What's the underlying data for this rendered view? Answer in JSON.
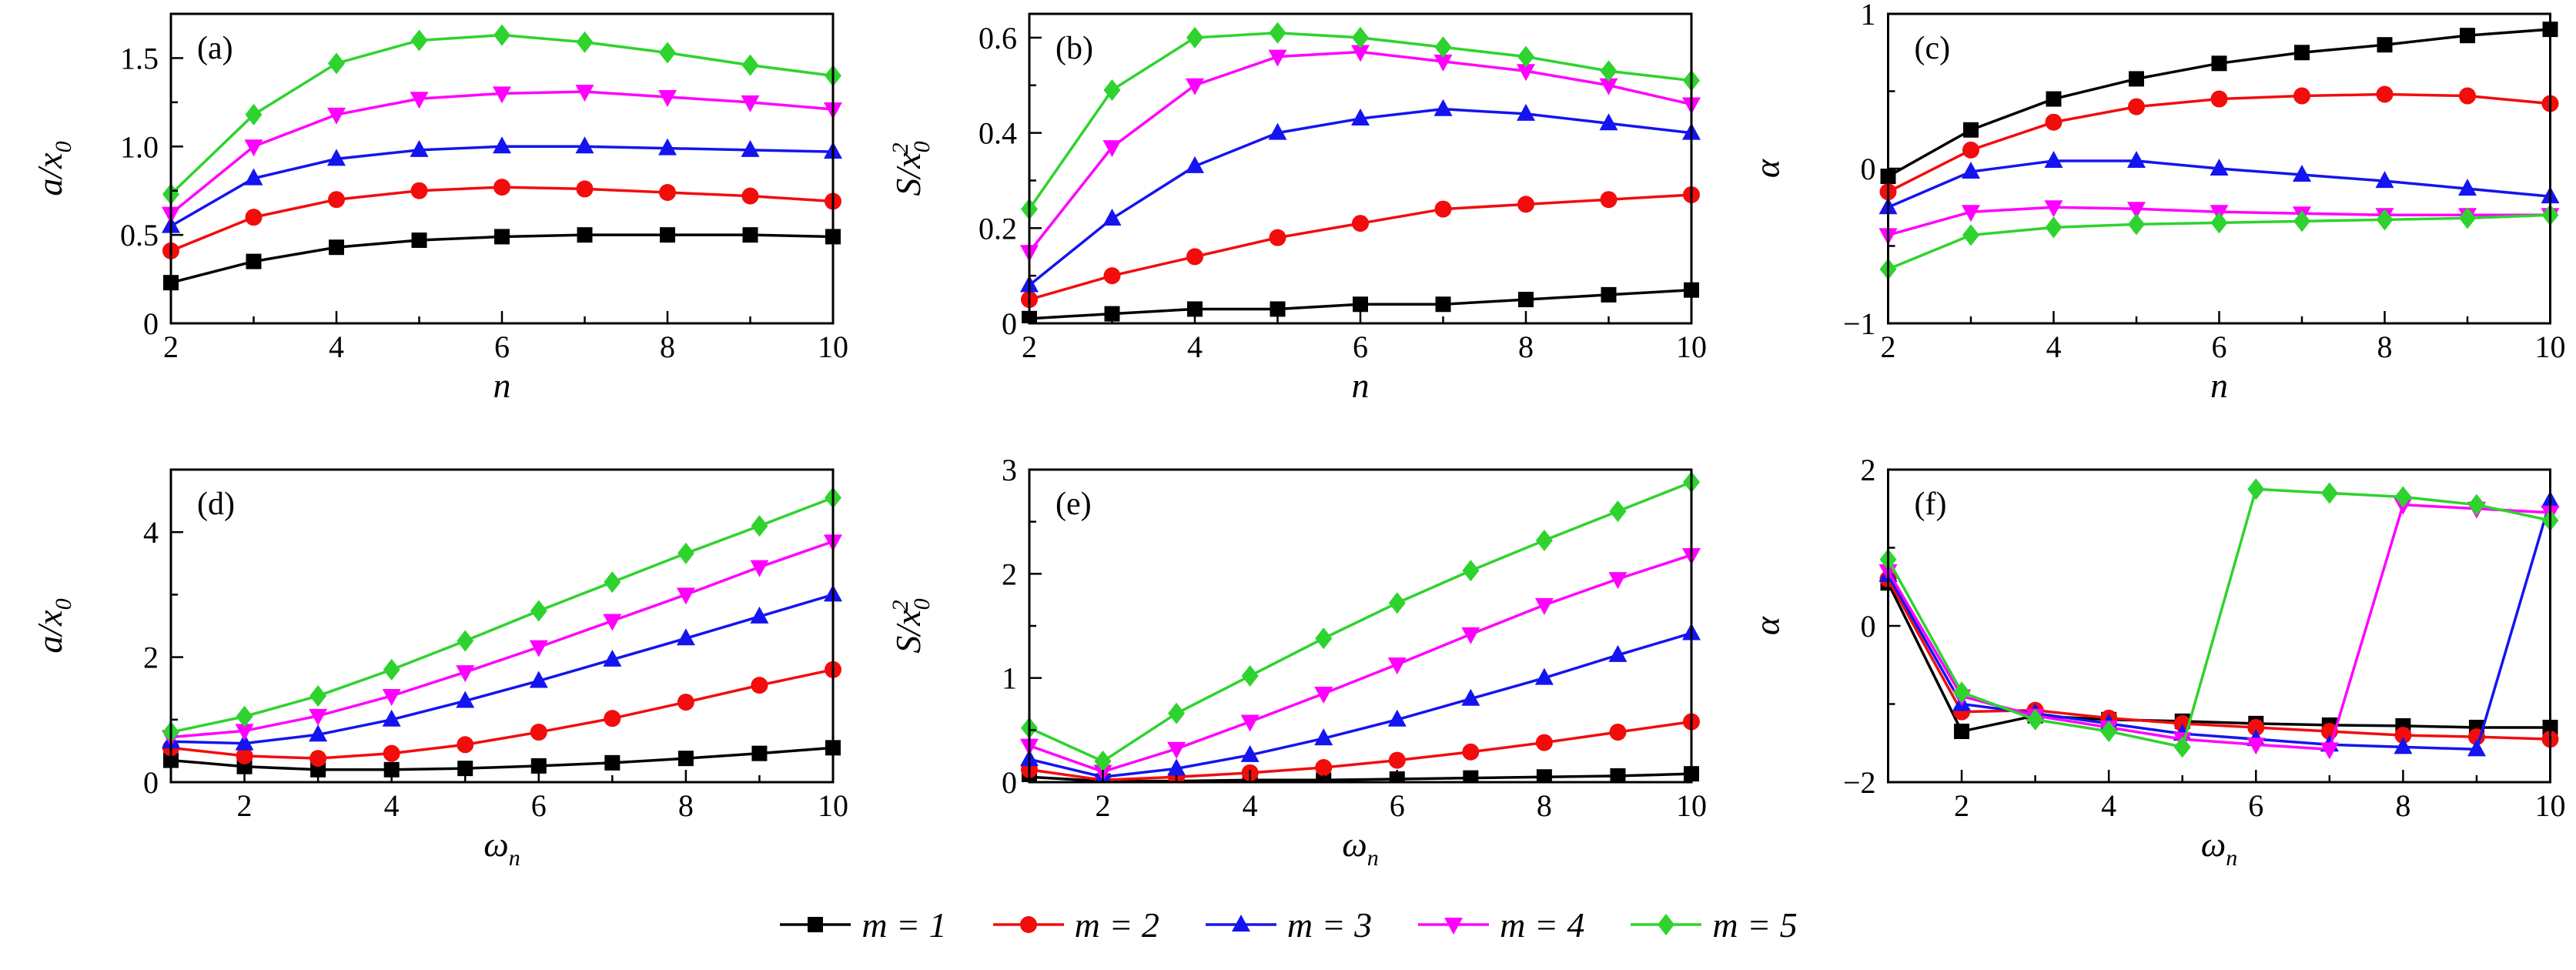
{
  "figure": {
    "background": "#ffffff",
    "axis_color": "#000000",
    "legend": {
      "entries": [
        {
          "label": "m = 1",
          "color": "#000000",
          "marker": "square"
        },
        {
          "label": "m = 2",
          "color": "#f20c0c",
          "marker": "circle"
        },
        {
          "label": "m = 3",
          "color": "#1414f0",
          "marker": "triangle-up"
        },
        {
          "label": "m = 4",
          "color": "#ff00ff",
          "marker": "triangle-down"
        },
        {
          "label": "m = 5",
          "color": "#2ed32e",
          "marker": "diamond"
        }
      ]
    }
  },
  "chart_data": [
    {
      "id": "a",
      "type": "line",
      "tag": "(a)",
      "xlabel": "n",
      "ylabel": "a/x_0",
      "xlim": [
        2,
        10
      ],
      "ylim": [
        0,
        1.75
      ],
      "xticks": [
        2,
        4,
        6,
        8,
        10
      ],
      "xminor": [
        3,
        5,
        7,
        9
      ],
      "yticks": [
        0,
        0.5,
        1.0,
        1.5
      ],
      "ytick_labels": [
        "0",
        "0.5",
        "1.0",
        "1.5"
      ],
      "yminor": [
        0.25,
        0.75,
        1.25
      ],
      "x": [
        2,
        3,
        4,
        5,
        6,
        7,
        8,
        9,
        10
      ],
      "series": [
        {
          "name": "m = 1",
          "values": [
            0.23,
            0.35,
            0.43,
            0.47,
            0.49,
            0.5,
            0.5,
            0.5,
            0.49
          ]
        },
        {
          "name": "m = 2",
          "values": [
            0.41,
            0.6,
            0.7,
            0.75,
            0.77,
            0.76,
            0.74,
            0.72,
            0.69
          ]
        },
        {
          "name": "m = 3",
          "values": [
            0.55,
            0.82,
            0.93,
            0.98,
            1.0,
            1.0,
            0.99,
            0.98,
            0.97
          ]
        },
        {
          "name": "m = 4",
          "values": [
            0.62,
            1.0,
            1.18,
            1.27,
            1.3,
            1.31,
            1.28,
            1.25,
            1.21
          ]
        },
        {
          "name": "m = 5",
          "values": [
            0.73,
            1.18,
            1.47,
            1.6,
            1.63,
            1.59,
            1.53,
            1.46,
            1.4
          ]
        }
      ]
    },
    {
      "id": "b",
      "type": "line",
      "tag": "(b)",
      "xlabel": "n",
      "ylabel": "S/x_0^2",
      "xlim": [
        2,
        10
      ],
      "ylim": [
        0,
        0.65
      ],
      "xticks": [
        2,
        4,
        6,
        8,
        10
      ],
      "xminor": [
        3,
        5,
        7,
        9
      ],
      "yticks": [
        0,
        0.2,
        0.4,
        0.6
      ],
      "ytick_labels": [
        "0",
        "0.2",
        "0.4",
        "0.6"
      ],
      "yminor": [
        0.1,
        0.3,
        0.5
      ],
      "x": [
        2,
        3,
        4,
        5,
        6,
        7,
        8,
        9,
        10
      ],
      "series": [
        {
          "name": "m = 1",
          "values": [
            0.01,
            0.02,
            0.03,
            0.03,
            0.04,
            0.04,
            0.05,
            0.06,
            0.07
          ]
        },
        {
          "name": "m = 2",
          "values": [
            0.05,
            0.1,
            0.14,
            0.18,
            0.21,
            0.24,
            0.25,
            0.26,
            0.27
          ]
        },
        {
          "name": "m = 3",
          "values": [
            0.08,
            0.22,
            0.33,
            0.4,
            0.43,
            0.45,
            0.44,
            0.42,
            0.4
          ]
        },
        {
          "name": "m = 4",
          "values": [
            0.15,
            0.37,
            0.5,
            0.56,
            0.57,
            0.55,
            0.53,
            0.5,
            0.46
          ]
        },
        {
          "name": "m = 5",
          "values": [
            0.24,
            0.49,
            0.6,
            0.61,
            0.6,
            0.58,
            0.56,
            0.53,
            0.51
          ]
        }
      ]
    },
    {
      "id": "c",
      "type": "line",
      "tag": "(c)",
      "xlabel": "n",
      "ylabel": "α",
      "xlim": [
        2,
        10
      ],
      "ylim": [
        -1,
        1
      ],
      "xticks": [
        2,
        4,
        6,
        8,
        10
      ],
      "xminor": [
        3,
        5,
        7,
        9
      ],
      "yticks": [
        -1,
        0,
        1
      ],
      "ytick_labels": [
        "−1",
        "0",
        "1"
      ],
      "yminor": [
        -0.5,
        0.5
      ],
      "x": [
        2,
        3,
        4,
        5,
        6,
        7,
        8,
        9,
        10
      ],
      "series": [
        {
          "name": "m = 1",
          "values": [
            -0.05,
            0.25,
            0.45,
            0.58,
            0.68,
            0.75,
            0.8,
            0.86,
            0.9
          ]
        },
        {
          "name": "m = 2",
          "values": [
            -0.15,
            0.12,
            0.3,
            0.4,
            0.45,
            0.47,
            0.48,
            0.47,
            0.42
          ]
        },
        {
          "name": "m = 3",
          "values": [
            -0.25,
            -0.02,
            0.05,
            0.05,
            0.0,
            -0.04,
            -0.08,
            -0.13,
            -0.18
          ]
        },
        {
          "name": "m = 4",
          "values": [
            -0.43,
            -0.28,
            -0.25,
            -0.26,
            -0.28,
            -0.29,
            -0.3,
            -0.3,
            -0.3
          ]
        },
        {
          "name": "m = 5",
          "values": [
            -0.65,
            -0.43,
            -0.38,
            -0.36,
            -0.35,
            -0.34,
            -0.33,
            -0.32,
            -0.3
          ]
        }
      ]
    },
    {
      "id": "d",
      "type": "line",
      "tag": "(d)",
      "xlabel": "ω_n",
      "ylabel": "a/x_0",
      "xlim": [
        1,
        10
      ],
      "ylim": [
        0,
        5
      ],
      "xticks": [
        2,
        4,
        6,
        8,
        10
      ],
      "xminor": [
        3,
        5,
        7,
        9
      ],
      "yticks": [
        0,
        2,
        4
      ],
      "ytick_labels": [
        "0",
        "2",
        "4"
      ],
      "yminor": [
        1,
        3
      ],
      "x": [
        1,
        2,
        3,
        4,
        5,
        6,
        7,
        8,
        9,
        10
      ],
      "series": [
        {
          "name": "m = 1",
          "values": [
            0.35,
            0.25,
            0.2,
            0.2,
            0.22,
            0.26,
            0.31,
            0.38,
            0.46,
            0.55
          ]
        },
        {
          "name": "m = 2",
          "values": [
            0.55,
            0.42,
            0.38,
            0.46,
            0.6,
            0.8,
            1.02,
            1.28,
            1.55,
            1.8
          ]
        },
        {
          "name": "m = 3",
          "values": [
            0.65,
            0.62,
            0.76,
            1.0,
            1.3,
            1.62,
            1.96,
            2.3,
            2.65,
            3.0
          ]
        },
        {
          "name": "m = 4",
          "values": [
            0.72,
            0.82,
            1.06,
            1.38,
            1.76,
            2.16,
            2.58,
            3.0,
            3.44,
            3.85
          ]
        },
        {
          "name": "m = 5",
          "values": [
            0.8,
            1.05,
            1.38,
            1.8,
            2.26,
            2.74,
            3.2,
            3.66,
            4.1,
            4.55
          ]
        }
      ]
    },
    {
      "id": "e",
      "type": "line",
      "tag": "(e)",
      "xlabel": "ω_n",
      "ylabel": "S/x_0^2",
      "xlim": [
        1,
        10
      ],
      "ylim": [
        0,
        3
      ],
      "xticks": [
        2,
        4,
        6,
        8,
        10
      ],
      "xminor": [
        3,
        5,
        7,
        9
      ],
      "yticks": [
        0,
        1,
        2,
        3
      ],
      "ytick_labels": [
        "0",
        "1",
        "2",
        "3"
      ],
      "yminor": [
        0.5,
        1.5,
        2.5
      ],
      "x": [
        1,
        2,
        3,
        4,
        5,
        6,
        7,
        8,
        9,
        10
      ],
      "series": [
        {
          "name": "m = 1",
          "values": [
            0.05,
            0.01,
            0.01,
            0.02,
            0.02,
            0.03,
            0.04,
            0.05,
            0.06,
            0.08
          ]
        },
        {
          "name": "m = 2",
          "values": [
            0.12,
            0.02,
            0.05,
            0.09,
            0.14,
            0.21,
            0.29,
            0.38,
            0.48,
            0.58
          ]
        },
        {
          "name": "m = 3",
          "values": [
            0.22,
            0.05,
            0.13,
            0.26,
            0.42,
            0.6,
            0.8,
            1.0,
            1.22,
            1.43
          ]
        },
        {
          "name": "m = 4",
          "values": [
            0.35,
            0.1,
            0.32,
            0.58,
            0.85,
            1.13,
            1.42,
            1.7,
            1.95,
            2.18
          ]
        },
        {
          "name": "m = 5",
          "values": [
            0.52,
            0.2,
            0.66,
            1.02,
            1.38,
            1.72,
            2.03,
            2.32,
            2.6,
            2.88
          ]
        }
      ]
    },
    {
      "id": "f",
      "type": "line",
      "tag": "(f)",
      "xlabel": "ω_n",
      "ylabel": "α",
      "xlim": [
        1,
        10
      ],
      "ylim": [
        -2,
        2
      ],
      "xticks": [
        2,
        4,
        6,
        8,
        10
      ],
      "xminor": [
        3,
        5,
        7,
        9
      ],
      "yticks": [
        -2,
        0,
        2
      ],
      "ytick_labels": [
        "−2",
        "0",
        "2"
      ],
      "yminor": [
        -1,
        1
      ],
      "x": [
        1,
        2,
        3,
        4,
        5,
        6,
        7,
        8,
        9,
        10
      ],
      "series": [
        {
          "name": "m = 1",
          "values": [
            0.55,
            -1.35,
            -1.15,
            -1.2,
            -1.22,
            -1.25,
            -1.27,
            -1.28,
            -1.3,
            -1.3
          ]
        },
        {
          "name": "m = 2",
          "values": [
            0.6,
            -1.1,
            -1.08,
            -1.18,
            -1.25,
            -1.3,
            -1.35,
            -1.4,
            -1.42,
            -1.45
          ]
        },
        {
          "name": "m = 3",
          "values": [
            0.65,
            -1.0,
            -1.12,
            -1.25,
            -1.38,
            -1.45,
            -1.52,
            -1.55,
            -1.58,
            1.6
          ]
        },
        {
          "name": "m = 4",
          "values": [
            0.7,
            -0.9,
            -1.15,
            -1.3,
            -1.45,
            -1.52,
            -1.58,
            1.55,
            1.5,
            1.45
          ]
        },
        {
          "name": "m = 5",
          "values": [
            0.85,
            -0.85,
            -1.2,
            -1.35,
            -1.55,
            1.75,
            1.7,
            1.65,
            1.55,
            1.35
          ]
        }
      ]
    }
  ]
}
